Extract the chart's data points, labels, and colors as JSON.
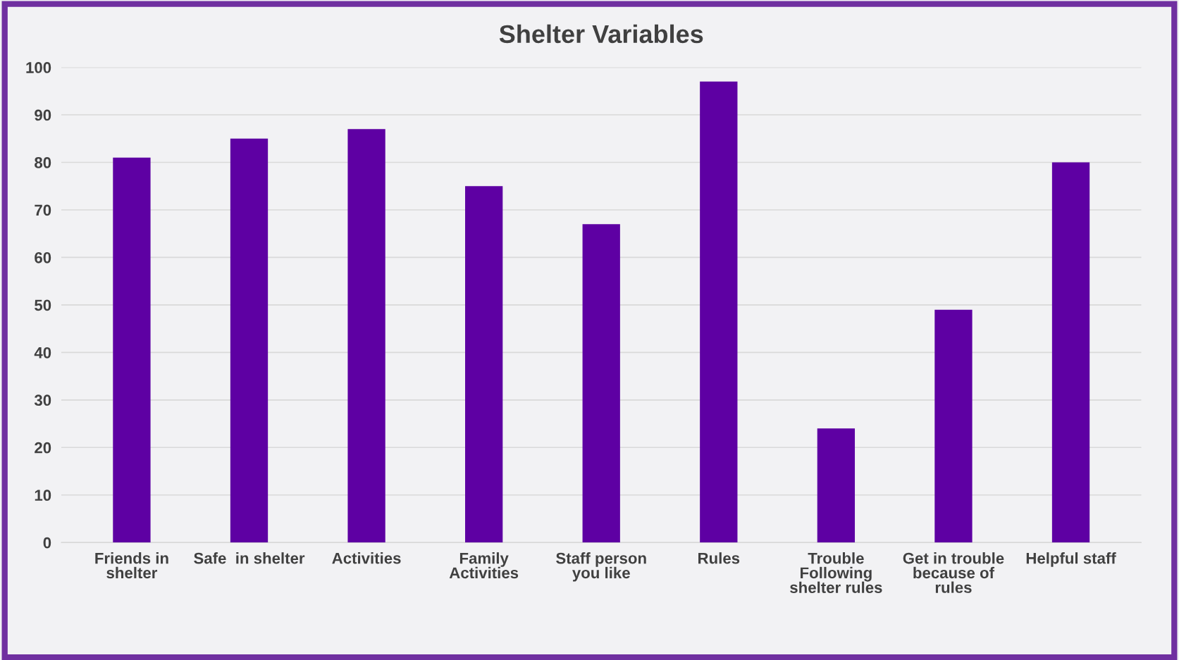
{
  "chart_data": {
    "type": "bar",
    "title": "Shelter Variables",
    "categories": [
      "Friends in\nshelter",
      "Safe  in shelter",
      "Activities",
      "Family\nActivities",
      "Staff person\nyou like",
      "Rules",
      "Trouble\nFollowing\nshelter rules",
      "Get in trouble\nbecause of\nrules",
      "Helpful staff"
    ],
    "values": [
      81,
      85,
      87,
      75,
      67,
      97,
      24,
      49,
      80
    ],
    "color": "#5e00a3",
    "ylim": [
      0,
      100
    ],
    "yticks": [
      0,
      10,
      20,
      30,
      40,
      50,
      60,
      70,
      80,
      90,
      100
    ],
    "grid": "y",
    "legend": false
  }
}
